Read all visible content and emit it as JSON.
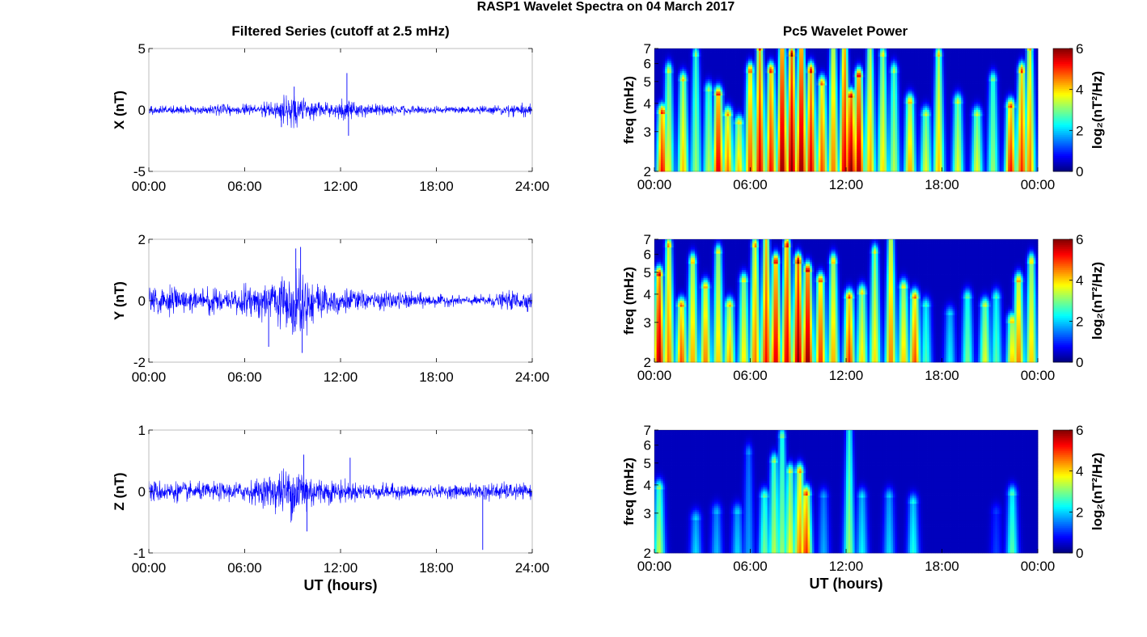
{
  "figure": {
    "title": "RASP1 Wavelet Spectra on 04 March 2017",
    "left_column_title": "Filtered Series (cutoff at 2.5 mHz)",
    "right_column_title": "Pc5 Wavelet Power"
  },
  "colors": {
    "trace": "#0000ff",
    "background": "#ffffff",
    "colormap": "jet",
    "spectrogram_floor": "#00008f"
  },
  "chart_data": [
    {
      "type": "line",
      "panel": "X",
      "ylabel": "X (nT)",
      "ylim": [
        -5,
        5
      ],
      "yticks": [
        "5",
        "0",
        "-5"
      ],
      "xlim_hours": [
        0,
        24
      ],
      "xticks": [
        "00:00",
        "06:00",
        "12:00",
        "18:00",
        "24:00"
      ],
      "xlabel": "",
      "series": [
        {
          "baseline_nT": 0,
          "amplitude_envelope_nT": [
            [
              0,
              0.35
            ],
            [
              2,
              0.35
            ],
            [
              4,
              0.4
            ],
            [
              6,
              0.45
            ],
            [
              7,
              0.6
            ],
            [
              8,
              0.8
            ],
            [
              8.5,
              1.1
            ],
            [
              9,
              1.3
            ],
            [
              9.5,
              1.2
            ],
            [
              10,
              0.9
            ],
            [
              11,
              0.6
            ],
            [
              12,
              0.7
            ],
            [
              12.3,
              1.2
            ],
            [
              13,
              0.6
            ],
            [
              14,
              0.5
            ],
            [
              16,
              0.4
            ],
            [
              18,
              0.3
            ],
            [
              20,
              0.3
            ],
            [
              21,
              0.35
            ],
            [
              22,
              0.5
            ],
            [
              23,
              0.6
            ],
            [
              24,
              0.45
            ]
          ],
          "spikes": [
            {
              "hour": 12.4,
              "value": 3.0
            },
            {
              "hour": 12.5,
              "value": -2.1
            },
            {
              "hour": 9.1,
              "value": 1.9
            },
            {
              "hour": 8.3,
              "value": -1.4
            }
          ]
        }
      ]
    },
    {
      "type": "line",
      "panel": "Y",
      "ylabel": "Y (nT)",
      "ylim": [
        -2,
        2
      ],
      "yticks": [
        "2",
        "0",
        "-2"
      ],
      "xlim_hours": [
        0,
        24
      ],
      "xticks": [
        "00:00",
        "06:00",
        "12:00",
        "18:00",
        "24:00"
      ],
      "xlabel": "",
      "series": [
        {
          "baseline_nT": 0,
          "amplitude_envelope_nT": [
            [
              0,
              0.6
            ],
            [
              1,
              0.5
            ],
            [
              2,
              0.4
            ],
            [
              3,
              0.35
            ],
            [
              4,
              0.45
            ],
            [
              5,
              0.4
            ],
            [
              6,
              0.5
            ],
            [
              7,
              0.6
            ],
            [
              8,
              0.8
            ],
            [
              9,
              1.1
            ],
            [
              9.5,
              1.3
            ],
            [
              10,
              0.9
            ],
            [
              11,
              0.55
            ],
            [
              12,
              0.5
            ],
            [
              13,
              0.35
            ],
            [
              14,
              0.3
            ],
            [
              16,
              0.3
            ],
            [
              18,
              0.2
            ],
            [
              20,
              0.15
            ],
            [
              21,
              0.2
            ],
            [
              22,
              0.25
            ],
            [
              23,
              0.35
            ],
            [
              24,
              0.3
            ]
          ],
          "spikes": [
            {
              "hour": 9.5,
              "value": 1.75
            },
            {
              "hour": 9.6,
              "value": -1.7
            },
            {
              "hour": 9.2,
              "value": 1.7
            },
            {
              "hour": 7.5,
              "value": -1.5
            }
          ]
        }
      ]
    },
    {
      "type": "line",
      "panel": "Z",
      "ylabel": "Z (nT)",
      "ylim": [
        -1,
        1
      ],
      "yticks": [
        "1",
        "0",
        "-1"
      ],
      "xlim_hours": [
        0,
        24
      ],
      "xticks": [
        "00:00",
        "06:00",
        "12:00",
        "18:00",
        "24:00"
      ],
      "xlabel": "UT (hours)",
      "series": [
        {
          "baseline_nT": 0,
          "amplitude_envelope_nT": [
            [
              0,
              0.2
            ],
            [
              1,
              0.18
            ],
            [
              3,
              0.15
            ],
            [
              5,
              0.15
            ],
            [
              6,
              0.18
            ],
            [
              7,
              0.22
            ],
            [
              7.5,
              0.3
            ],
            [
              8,
              0.35
            ],
            [
              8.5,
              0.4
            ],
            [
              9,
              0.45
            ],
            [
              9.5,
              0.5
            ],
            [
              10,
              0.35
            ],
            [
              11,
              0.2
            ],
            [
              12,
              0.2
            ],
            [
              13,
              0.15
            ],
            [
              16,
              0.12
            ],
            [
              18,
              0.1
            ],
            [
              20,
              0.12
            ],
            [
              21,
              0.15
            ],
            [
              22,
              0.15
            ],
            [
              24,
              0.12
            ]
          ],
          "spikes": [
            {
              "hour": 20.9,
              "value": -0.95
            },
            {
              "hour": 9.7,
              "value": 0.6
            },
            {
              "hour": 12.6,
              "value": 0.55
            },
            {
              "hour": 9.9,
              "value": -0.65
            }
          ]
        }
      ]
    },
    {
      "type": "heatmap",
      "panel": "X",
      "ylabel": "freq (mHz)",
      "yscale": "log",
      "ylim_mHz": [
        2,
        7
      ],
      "yticks": [
        "7",
        "6",
        "5",
        "4",
        "3",
        "2"
      ],
      "xlim_hours": [
        0,
        24
      ],
      "xticks": [
        "00:00",
        "06:00",
        "12:00",
        "18:00",
        "00:00"
      ],
      "xlabel": "",
      "colorbar": {
        "label": "log₂(nT²/Hz)",
        "range": [
          0,
          6
        ],
        "ticks": [
          "6",
          "4",
          "2",
          "0"
        ]
      },
      "blobs": [
        {
          "hour": 0.5,
          "peak": 5.2,
          "top_mHz": 3.6
        },
        {
          "hour": 0.9,
          "peak": 3.5,
          "top_mHz": 5.5
        },
        {
          "hour": 1.8,
          "peak": 4.0,
          "top_mHz": 5.0
        },
        {
          "hour": 2.6,
          "peak": 3.0,
          "top_mHz": 6.5
        },
        {
          "hour": 3.4,
          "peak": 3.2,
          "top_mHz": 4.5
        },
        {
          "hour": 4.0,
          "peak": 5.5,
          "top_mHz": 4.3
        },
        {
          "hour": 4.6,
          "peak": 4.5,
          "top_mHz": 3.5
        },
        {
          "hour": 5.3,
          "peak": 4.0,
          "top_mHz": 3.2
        },
        {
          "hour": 6.0,
          "peak": 4.8,
          "top_mHz": 5.5
        },
        {
          "hour": 6.6,
          "peak": 5.5,
          "top_mHz": 6.8
        },
        {
          "hour": 7.3,
          "peak": 5.2,
          "top_mHz": 5.5
        },
        {
          "hour": 8.0,
          "peak": 6.0,
          "top_mHz": 7
        },
        {
          "hour": 8.6,
          "peak": 6.0,
          "top_mHz": 6.5
        },
        {
          "hour": 9.2,
          "peak": 6.0,
          "top_mHz": 7
        },
        {
          "hour": 9.8,
          "peak": 5.5,
          "top_mHz": 5.5
        },
        {
          "hour": 10.5,
          "peak": 4.8,
          "top_mHz": 4.8
        },
        {
          "hour": 11.2,
          "peak": 4.5,
          "top_mHz": 7
        },
        {
          "hour": 11.9,
          "peak": 5.5,
          "top_mHz": 7
        },
        {
          "hour": 12.3,
          "peak": 6.0,
          "top_mHz": 4.2
        },
        {
          "hour": 12.8,
          "peak": 5.8,
          "top_mHz": 5.2
        },
        {
          "hour": 13.5,
          "peak": 4.2,
          "top_mHz": 7
        },
        {
          "hour": 14.3,
          "peak": 3.8,
          "top_mHz": 6.5
        },
        {
          "hour": 15.0,
          "peak": 3.2,
          "top_mHz": 5.5
        },
        {
          "hour": 16.0,
          "peak": 4.2,
          "top_mHz": 4
        },
        {
          "hour": 17.0,
          "peak": 3.5,
          "top_mHz": 3.5
        },
        {
          "hour": 17.8,
          "peak": 4.0,
          "top_mHz": 6.5
        },
        {
          "hour": 19.0,
          "peak": 3.5,
          "top_mHz": 4
        },
        {
          "hour": 20.2,
          "peak": 3.5,
          "top_mHz": 3.5
        },
        {
          "hour": 21.2,
          "peak": 3.0,
          "top_mHz": 5.0
        },
        {
          "hour": 22.3,
          "peak": 5.2,
          "top_mHz": 3.8
        },
        {
          "hour": 23.0,
          "peak": 5.0,
          "top_mHz": 5.5
        },
        {
          "hour": 23.5,
          "peak": 4.5,
          "top_mHz": 6.8
        }
      ]
    },
    {
      "type": "heatmap",
      "panel": "Y",
      "ylabel": "freq (mHz)",
      "yscale": "log",
      "ylim_mHz": [
        2,
        7
      ],
      "yticks": [
        "7",
        "6",
        "5",
        "4",
        "3",
        "2"
      ],
      "xlim_hours": [
        0,
        24
      ],
      "xticks": [
        "00:00",
        "06:00",
        "12:00",
        "18:00",
        "00:00"
      ],
      "xlabel": "",
      "colorbar": {
        "label": "log₂(nT²/Hz)",
        "range": [
          0,
          6
        ],
        "ticks": [
          "6",
          "4",
          "2",
          "0"
        ]
      },
      "blobs": [
        {
          "hour": 0.3,
          "peak": 5.8,
          "top_mHz": 4.8
        },
        {
          "hour": 0.9,
          "peak": 4.5,
          "top_mHz": 6.5
        },
        {
          "hour": 1.7,
          "peak": 4.8,
          "top_mHz": 3.5
        },
        {
          "hour": 2.4,
          "peak": 4.2,
          "top_mHz": 5.5
        },
        {
          "hour": 3.2,
          "peak": 4.5,
          "top_mHz": 4.2
        },
        {
          "hour": 4.0,
          "peak": 4.0,
          "top_mHz": 6
        },
        {
          "hour": 4.7,
          "peak": 4.2,
          "top_mHz": 3.5
        },
        {
          "hour": 5.6,
          "peak": 3.8,
          "top_mHz": 4.5
        },
        {
          "hour": 6.3,
          "peak": 4.5,
          "top_mHz": 6.5
        },
        {
          "hour": 7.0,
          "peak": 5.2,
          "top_mHz": 7
        },
        {
          "hour": 7.6,
          "peak": 5.5,
          "top_mHz": 5.5
        },
        {
          "hour": 8.3,
          "peak": 5.5,
          "top_mHz": 6.5
        },
        {
          "hour": 9.0,
          "peak": 6.0,
          "top_mHz": 5.5
        },
        {
          "hour": 9.6,
          "peak": 6.0,
          "top_mHz": 5.0
        },
        {
          "hour": 10.4,
          "peak": 5.0,
          "top_mHz": 4.5
        },
        {
          "hour": 11.2,
          "peak": 4.2,
          "top_mHz": 5.5
        },
        {
          "hour": 12.2,
          "peak": 5.0,
          "top_mHz": 3.8
        },
        {
          "hour": 13.0,
          "peak": 3.8,
          "top_mHz": 4.0
        },
        {
          "hour": 13.8,
          "peak": 3.8,
          "top_mHz": 6
        },
        {
          "hour": 14.8,
          "peak": 4.5,
          "top_mHz": 7
        },
        {
          "hour": 15.6,
          "peak": 4.0,
          "top_mHz": 4.2
        },
        {
          "hour": 16.3,
          "peak": 4.8,
          "top_mHz": 3.8
        },
        {
          "hour": 17.0,
          "peak": 2.5,
          "top_mHz": 3.5
        },
        {
          "hour": 18.5,
          "peak": 2.0,
          "top_mHz": 3.2
        },
        {
          "hour": 19.6,
          "peak": 2.8,
          "top_mHz": 3.8
        },
        {
          "hour": 20.7,
          "peak": 3.5,
          "top_mHz": 3.5
        },
        {
          "hour": 21.4,
          "peak": 2.6,
          "top_mHz": 3.8
        },
        {
          "hour": 22.4,
          "peak": 4.0,
          "top_mHz": 3.0
        },
        {
          "hour": 22.8,
          "peak": 4.5,
          "top_mHz": 4.5
        },
        {
          "hour": 23.6,
          "peak": 4.0,
          "top_mHz": 5.5
        }
      ]
    },
    {
      "type": "heatmap",
      "panel": "Z",
      "ylabel": "freq (mHz)",
      "yscale": "log",
      "ylim_mHz": [
        2,
        7
      ],
      "yticks": [
        "7",
        "6",
        "5",
        "4",
        "3",
        "2"
      ],
      "xlim_hours": [
        0,
        24
      ],
      "xticks": [
        "00:00",
        "06:00",
        "12:00",
        "18:00",
        "00:00"
      ],
      "xlabel": "UT (hours)",
      "colorbar": {
        "label": "log₂(nT²/Hz)",
        "range": [
          0,
          6
        ],
        "ticks": [
          "6",
          "4",
          "2",
          "0"
        ]
      },
      "blobs": [
        {
          "hour": 0.3,
          "peak": 3.2,
          "top_mHz": 3.8
        },
        {
          "hour": 2.6,
          "peak": 1.8,
          "top_mHz": 2.8
        },
        {
          "hour": 3.9,
          "peak": 1.6,
          "top_mHz": 3.0
        },
        {
          "hour": 5.2,
          "peak": 1.8,
          "top_mHz": 3.0
        },
        {
          "hour": 5.9,
          "peak": 1.4,
          "top_mHz": 5.5
        },
        {
          "hour": 6.9,
          "peak": 2.8,
          "top_mHz": 3.5
        },
        {
          "hour": 7.5,
          "peak": 3.2,
          "top_mHz": 5.0
        },
        {
          "hour": 8.0,
          "peak": 3.0,
          "top_mHz": 6.5
        },
        {
          "hour": 8.5,
          "peak": 3.6,
          "top_mHz": 4.5
        },
        {
          "hour": 9.1,
          "peak": 4.5,
          "top_mHz": 4.5
        },
        {
          "hour": 9.5,
          "peak": 5.0,
          "top_mHz": 3.6
        },
        {
          "hour": 10.6,
          "peak": 1.5,
          "top_mHz": 3.5
        },
        {
          "hour": 12.2,
          "peak": 3.0,
          "top_mHz": 7
        },
        {
          "hour": 13.0,
          "peak": 2.0,
          "top_mHz": 3.5
        },
        {
          "hour": 14.7,
          "peak": 1.8,
          "top_mHz": 3.5
        },
        {
          "hour": 16.2,
          "peak": 2.2,
          "top_mHz": 3.3
        },
        {
          "hour": 22.4,
          "peak": 2.6,
          "top_mHz": 3.6
        },
        {
          "hour": 21.4,
          "peak": 0.8,
          "top_mHz": 3.0
        }
      ]
    }
  ]
}
